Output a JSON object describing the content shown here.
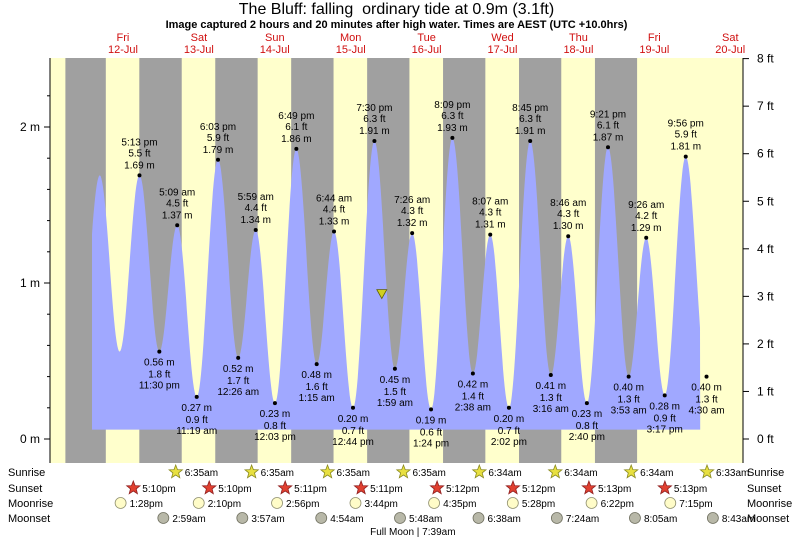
{
  "header": {
    "title": "The Bluff: falling  ordinary tide at 0.9m (3.1ft)",
    "subtitle": "Image captured 2 hours and 20 minutes after high water. Times are AEST (UTC +10.0hrs)"
  },
  "colors": {
    "day_band": "#ffffcc",
    "night_band": "#a0a0a0",
    "tide_fill": "#a0a8ff",
    "day_label": "#d01010",
    "marker": "#d0d020"
  },
  "chart_data": {
    "type": "area",
    "title": "The Bluff: falling  ordinary tide at 0.9m (3.1ft)",
    "x_unit": "hours from Fri 12-Jul 00:00 AEST",
    "y_left_ticks": [
      "0 m",
      "1 m",
      "2 m"
    ],
    "y_right_ticks": [
      "0 ft",
      "1 ft",
      "2 ft",
      "3 ft",
      "4 ft",
      "5 ft",
      "6 ft",
      "7 ft",
      "8 ft"
    ],
    "ylim_m": [
      0,
      2.4
    ],
    "grid": false,
    "days": [
      {
        "name": "Fri",
        "date": "12-Jul"
      },
      {
        "name": "Sat",
        "date": "13-Jul"
      },
      {
        "name": "Sun",
        "date": "14-Jul"
      },
      {
        "name": "Mon",
        "date": "15-Jul"
      },
      {
        "name": "Tue",
        "date": "16-Jul"
      },
      {
        "name": "Wed",
        "date": "17-Jul"
      },
      {
        "name": "Thu",
        "date": "18-Jul"
      },
      {
        "name": "Fri",
        "date": "19-Jul"
      },
      {
        "name": "Sat",
        "date": "20-Jul"
      }
    ],
    "nights": [
      [
        -6.2,
        6.58
      ],
      [
        17.17,
        30.58
      ],
      [
        41.18,
        54.58
      ],
      [
        65.18,
        78.58
      ],
      [
        89.2,
        102.57
      ],
      [
        113.2,
        126.57
      ],
      [
        137.22,
        150.57
      ],
      [
        161.22,
        174.55
      ]
    ],
    "tides": [
      {
        "time": "5:13 pm",
        "ft": "5.5 ft",
        "m": "1.69 m",
        "h": 17.22,
        "v": 1.69,
        "type": "high"
      },
      {
        "time": "11:30 pm",
        "ft": "1.8 ft",
        "m": "0.56 m",
        "h": 23.5,
        "v": 0.56,
        "type": "low"
      },
      {
        "time": "5:09 am",
        "ft": "4.5 ft",
        "m": "1.37 m",
        "h": 29.15,
        "v": 1.37,
        "type": "high"
      },
      {
        "time": "11:19 am",
        "ft": "0.9 ft",
        "m": "0.27 m",
        "h": 35.32,
        "v": 0.27,
        "type": "low"
      },
      {
        "time": "6:03 pm",
        "ft": "5.9 ft",
        "m": "1.79 m",
        "h": 42.05,
        "v": 1.79,
        "type": "high"
      },
      {
        "time": "12:26 am",
        "ft": "1.7 ft",
        "m": "0.52 m",
        "h": 48.43,
        "v": 0.52,
        "type": "low"
      },
      {
        "time": "5:59 am",
        "ft": "4.4 ft",
        "m": "1.34 m",
        "h": 53.98,
        "v": 1.34,
        "type": "high"
      },
      {
        "time": "12:03 pm",
        "ft": "0.8 ft",
        "m": "0.23 m",
        "h": 60.05,
        "v": 0.23,
        "type": "low"
      },
      {
        "time": "6:49 pm",
        "ft": "6.1 ft",
        "m": "1.86 m",
        "h": 66.82,
        "v": 1.86,
        "type": "high"
      },
      {
        "time": "1:15 am",
        "ft": "1.6 ft",
        "m": "0.48 m",
        "h": 73.25,
        "v": 0.48,
        "type": "low"
      },
      {
        "time": "6:44 am",
        "ft": "4.4 ft",
        "m": "1.33 m",
        "h": 78.73,
        "v": 1.33,
        "type": "high"
      },
      {
        "time": "12:44 pm",
        "ft": "0.7 ft",
        "m": "0.20 m",
        "h": 84.73,
        "v": 0.2,
        "type": "low"
      },
      {
        "time": "7:30 pm",
        "ft": "6.3 ft",
        "m": "1.91 m",
        "h": 91.5,
        "v": 1.91,
        "type": "high"
      },
      {
        "time": "1:59 am",
        "ft": "1.5 ft",
        "m": "0.45 m",
        "h": 97.98,
        "v": 0.45,
        "type": "low"
      },
      {
        "time": "7:26 am",
        "ft": "4.3 ft",
        "m": "1.32 m",
        "h": 103.43,
        "v": 1.32,
        "type": "high"
      },
      {
        "time": "1:24 pm",
        "ft": "0.6 ft",
        "m": "0.19 m",
        "h": 109.4,
        "v": 0.19,
        "type": "low"
      },
      {
        "time": "8:09 pm",
        "ft": "6.3 ft",
        "m": "1.93 m",
        "h": 116.15,
        "v": 1.93,
        "type": "high"
      },
      {
        "time": "2:38 am",
        "ft": "1.4 ft",
        "m": "0.42 m",
        "h": 122.63,
        "v": 0.42,
        "type": "low"
      },
      {
        "time": "8:07 am",
        "ft": "4.3 ft",
        "m": "1.31 m",
        "h": 128.12,
        "v": 1.31,
        "type": "high"
      },
      {
        "time": "2:02 pm",
        "ft": "0.7 ft",
        "m": "0.20 m",
        "h": 134.03,
        "v": 0.2,
        "type": "low"
      },
      {
        "time": "8:45 pm",
        "ft": "6.3 ft",
        "m": "1.91 m",
        "h": 140.75,
        "v": 1.91,
        "type": "high"
      },
      {
        "time": "3:16 am",
        "ft": "1.3 ft",
        "m": "0.41 m",
        "h": 147.27,
        "v": 0.41,
        "type": "low"
      },
      {
        "time": "8:46 am",
        "ft": "4.3 ft",
        "m": "1.30 m",
        "h": 152.77,
        "v": 1.3,
        "type": "high"
      },
      {
        "time": "2:40 pm",
        "ft": "0.8 ft",
        "m": "0.23 m",
        "h": 158.67,
        "v": 0.23,
        "type": "low"
      },
      {
        "time": "9:21 pm",
        "ft": "6.1 ft",
        "m": "1.87 m",
        "h": 165.35,
        "v": 1.87,
        "type": "high"
      },
      {
        "time": "3:53 am",
        "ft": "1.3 ft",
        "m": "0.40 m",
        "h": 171.88,
        "v": 0.4,
        "type": "low"
      },
      {
        "time": "9:26 am",
        "ft": "4.2 ft",
        "m": "1.29 m",
        "h": 177.43,
        "v": 1.29,
        "type": "high"
      },
      {
        "time": "3:17 pm",
        "ft": "0.9 ft",
        "m": "0.28 m",
        "h": 183.28,
        "v": 0.28,
        "type": "low"
      },
      {
        "time": "9:56 pm",
        "ft": "5.9 ft",
        "m": "1.81 m",
        "h": 189.93,
        "v": 1.81,
        "type": "high"
      },
      {
        "time": "4:30 am",
        "ft": "1.3 ft",
        "m": "0.40 m",
        "h": 196.5,
        "v": 0.4,
        "type": "low"
      }
    ],
    "current": {
      "h": 93.83,
      "v": 0.9
    }
  },
  "astro": {
    "row_labels": [
      "Sunrise",
      "Sunset",
      "Moonrise",
      "Moonset"
    ],
    "sunrise": [
      {
        "h": 30.58,
        "text": "6:35am"
      },
      {
        "h": 54.58,
        "text": "6:35am"
      },
      {
        "h": 78.58,
        "text": "6:35am"
      },
      {
        "h": 102.58,
        "text": "6:35am"
      },
      {
        "h": 126.57,
        "text": "6:34am"
      },
      {
        "h": 150.57,
        "text": "6:34am"
      },
      {
        "h": 174.57,
        "text": "6:34am"
      },
      {
        "h": 198.55,
        "text": "6:33am"
      }
    ],
    "sunset": [
      {
        "h": 17.17,
        "text": "5:10pm"
      },
      {
        "h": 41.17,
        "text": "5:10pm"
      },
      {
        "h": 65.18,
        "text": "5:11pm"
      },
      {
        "h": 89.18,
        "text": "5:11pm"
      },
      {
        "h": 113.2,
        "text": "5:12pm"
      },
      {
        "h": 137.2,
        "text": "5:12pm"
      },
      {
        "h": 161.22,
        "text": "5:13pm"
      },
      {
        "h": 185.22,
        "text": "5:13pm"
      }
    ],
    "moonrise": [
      {
        "h": 13.47,
        "text": "1:28pm"
      },
      {
        "h": 38.17,
        "text": "2:10pm"
      },
      {
        "h": 62.93,
        "text": "2:56pm"
      },
      {
        "h": 87.73,
        "text": "3:44pm"
      },
      {
        "h": 112.58,
        "text": "4:35pm"
      },
      {
        "h": 137.47,
        "text": "5:28pm"
      },
      {
        "h": 162.37,
        "text": "6:22pm"
      },
      {
        "h": 187.25,
        "text": "7:15pm"
      }
    ],
    "moonset": [
      {
        "h": 26.98,
        "text": "2:59am"
      },
      {
        "h": 51.95,
        "text": "3:57am"
      },
      {
        "h": 76.9,
        "text": "4:54am"
      },
      {
        "h": 101.8,
        "text": "5:48am"
      },
      {
        "h": 126.63,
        "text": "6:38am"
      },
      {
        "h": 151.4,
        "text": "7:24am"
      },
      {
        "h": 176.08,
        "text": "8:05am"
      },
      {
        "h": 200.72,
        "text": "8:43am"
      }
    ],
    "full_moon": {
      "h": 103.65,
      "text": "Full Moon | 7:39am"
    }
  }
}
